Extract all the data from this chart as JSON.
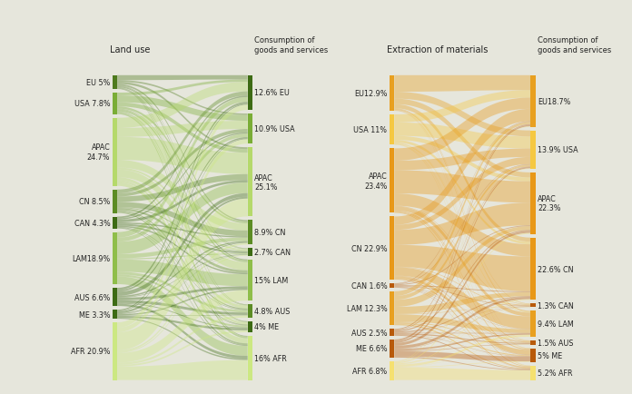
{
  "background_color": "#e6e6dc",
  "left_chart": {
    "title_left": "Land use",
    "title_right": "Consumption of\ngoods and services",
    "sources": [
      {
        "label": "EU 5%",
        "value": 5.0,
        "color": "#4e7a1e"
      },
      {
        "label": "USA 7.8%",
        "value": 7.8,
        "color": "#7aad36"
      },
      {
        "label": "APAC\n24.7%",
        "value": 24.7,
        "color": "#b5d96b"
      },
      {
        "label": "CN 8.5%",
        "value": 8.5,
        "color": "#5c8c24"
      },
      {
        "label": "CAN 4.3%",
        "value": 4.3,
        "color": "#3d6b14"
      },
      {
        "label": "LAM18.9%",
        "value": 18.9,
        "color": "#8fbe4a"
      },
      {
        "label": "AUS 6.6%",
        "value": 6.6,
        "color": "#3d6b14"
      },
      {
        "label": "ME 3.3%",
        "value": 3.3,
        "color": "#3d6b14"
      },
      {
        "label": "AFR 20.9%",
        "value": 20.9,
        "color": "#cce882"
      }
    ],
    "targets": [
      {
        "label": "12.6% EU",
        "value": 12.6,
        "color": "#3d6b14"
      },
      {
        "label": "10.9% USA",
        "value": 10.9,
        "color": "#7aad36"
      },
      {
        "label": "APAC\n25.1%",
        "value": 25.1,
        "color": "#b5d96b"
      },
      {
        "label": "8.9% CN",
        "value": 8.9,
        "color": "#5c8c24"
      },
      {
        "label": "2.7% CAN",
        "value": 2.7,
        "color": "#3d6b14"
      },
      {
        "label": "15% LAM",
        "value": 15.0,
        "color": "#8fbe4a"
      },
      {
        "label": "4.8% AUS",
        "value": 4.8,
        "color": "#5c8c24"
      },
      {
        "label": "4% ME",
        "value": 4.0,
        "color": "#3d6b14"
      },
      {
        "label": "16% AFR",
        "value": 16.0,
        "color": "#cce882"
      }
    ],
    "flows": [
      [
        1.8,
        0.6,
        0.8,
        0.6,
        0.2,
        0.4,
        0.2,
        0.2,
        0.2
      ],
      [
        1.0,
        2.5,
        1.5,
        0.8,
        0.3,
        0.7,
        0.3,
        0.2,
        0.5
      ],
      [
        4.0,
        3.5,
        9.0,
        3.0,
        0.8,
        3.0,
        1.2,
        0.8,
        1.4
      ],
      [
        1.8,
        1.5,
        2.5,
        2.5,
        0.4,
        1.0,
        0.5,
        0.3,
        0.5
      ],
      [
        0.6,
        0.5,
        1.0,
        0.5,
        0.7,
        0.5,
        0.2,
        0.1,
        0.2
      ],
      [
        2.0,
        1.5,
        4.5,
        1.5,
        0.4,
        4.5,
        1.0,
        0.7,
        2.8
      ],
      [
        0.8,
        0.6,
        1.5,
        0.5,
        0.2,
        0.9,
        1.0,
        0.3,
        0.8
      ],
      [
        0.4,
        0.3,
        0.8,
        0.3,
        0.1,
        0.5,
        0.2,
        0.8,
        0.4
      ],
      [
        2.2,
        1.9,
        7.5,
        0.7,
        0.4,
        4.0,
        0.9,
        0.7,
        5.6
      ]
    ]
  },
  "right_chart": {
    "title_left": "Extraction of materials",
    "title_right": "Consumption of\ngoods and services",
    "sources": [
      {
        "label": "EU12.9%",
        "value": 12.9,
        "color": "#e8a020"
      },
      {
        "label": "USA 11%",
        "value": 11.0,
        "color": "#f5c842"
      },
      {
        "label": "APAC\n23.4%",
        "value": 23.4,
        "color": "#e89818"
      },
      {
        "label": "CN 22.9%",
        "value": 22.9,
        "color": "#e89818"
      },
      {
        "label": "CAN 1.6%",
        "value": 1.6,
        "color": "#b85a0a"
      },
      {
        "label": "LAM 12.3%",
        "value": 12.3,
        "color": "#e8a020"
      },
      {
        "label": "AUS 2.5%",
        "value": 2.5,
        "color": "#b85a0a"
      },
      {
        "label": "ME 6.6%",
        "value": 6.6,
        "color": "#b85a0a"
      },
      {
        "label": "AFR 6.8%",
        "value": 6.8,
        "color": "#f5e070"
      }
    ],
    "targets": [
      {
        "label": "EU18.7%",
        "value": 18.7,
        "color": "#e8a020"
      },
      {
        "label": "13.9% USA",
        "value": 13.9,
        "color": "#f5c842"
      },
      {
        "label": "APAC\n22.3%",
        "value": 22.3,
        "color": "#e89818"
      },
      {
        "label": "22.6% CN",
        "value": 22.6,
        "color": "#e89818"
      },
      {
        "label": "1.3% CAN",
        "value": 1.3,
        "color": "#b85a0a"
      },
      {
        "label": "9.4% LAM",
        "value": 9.4,
        "color": "#e8a020"
      },
      {
        "label": "1.5% AUS",
        "value": 1.5,
        "color": "#b85a0a"
      },
      {
        "label": "5% ME",
        "value": 5.0,
        "color": "#b85a0a"
      },
      {
        "label": "5.2% AFR",
        "value": 5.2,
        "color": "#f5e070"
      }
    ],
    "flows": [
      [
        6.0,
        2.5,
        2.0,
        1.5,
        0.2,
        0.4,
        0.1,
        0.1,
        0.1
      ],
      [
        3.0,
        5.0,
        1.5,
        1.0,
        0.1,
        0.3,
        0.1,
        0.1,
        0.2
      ],
      [
        4.5,
        3.5,
        8.5,
        4.5,
        0.2,
        1.5,
        0.3,
        0.3,
        0.3
      ],
      [
        5.0,
        3.0,
        9.0,
        13.0,
        0.3,
        5.0,
        0.4,
        1.5,
        0.5
      ],
      [
        0.2,
        0.2,
        0.3,
        0.3,
        0.2,
        0.1,
        0.1,
        0.1,
        0.1
      ],
      [
        1.0,
        0.8,
        1.5,
        1.5,
        0.1,
        1.5,
        0.2,
        0.3,
        0.3
      ],
      [
        0.3,
        0.2,
        0.4,
        0.3,
        0.1,
        0.2,
        0.4,
        0.1,
        0.3
      ],
      [
        0.5,
        0.5,
        0.8,
        0.8,
        0.1,
        0.5,
        0.2,
        1.5,
        0.3
      ],
      [
        0.2,
        0.2,
        0.4,
        0.3,
        0.1,
        0.8,
        0.1,
        0.2,
        4.5
      ]
    ]
  }
}
